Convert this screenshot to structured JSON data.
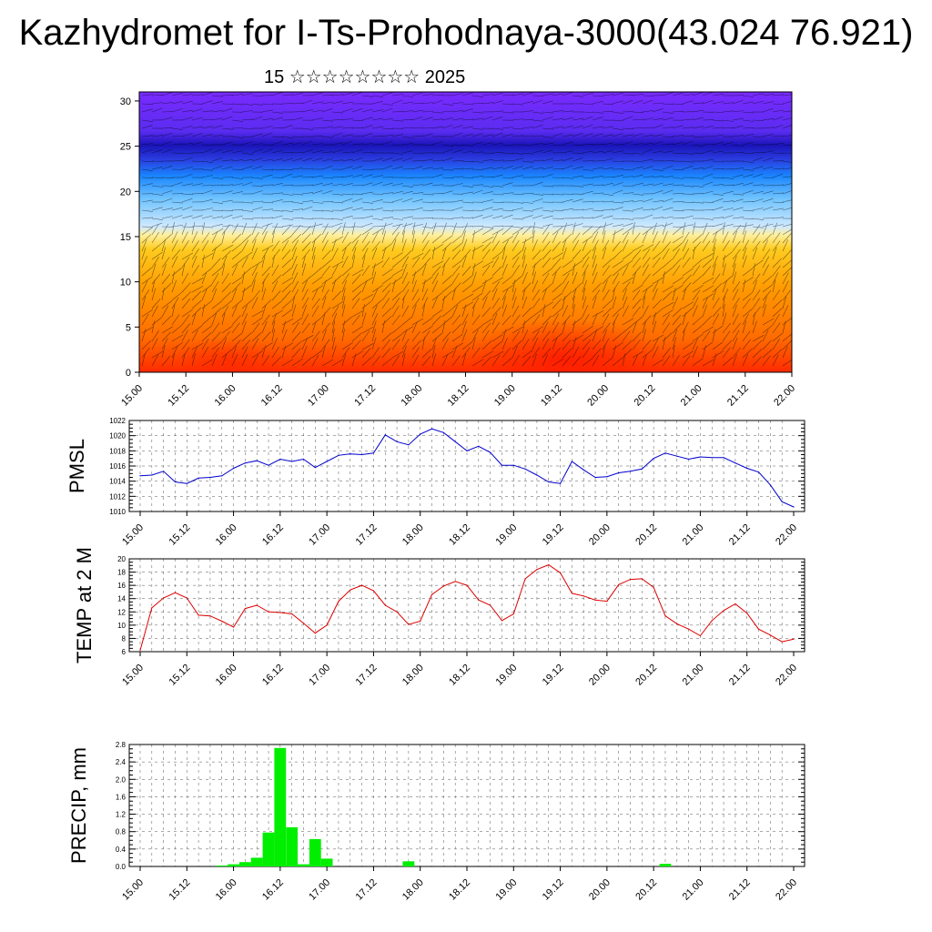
{
  "header": {
    "title": "Kazhydromet for I-Ts-Prohodnaya-3000(43.024 76.921)",
    "subtitle": "15 ☆☆☆☆☆☆☆☆ 2025"
  },
  "chart_data": [
    {
      "type": "heatmap",
      "id": "cross_section",
      "x_ticks": [
        "15.00",
        "15.12",
        "16.00",
        "16.12",
        "17.00",
        "17.12",
        "18.00",
        "18.12",
        "19.00",
        "19.12",
        "20.00",
        "20.12",
        "21.00",
        "21.12",
        "22.00"
      ],
      "y_ticks": [
        0,
        5,
        10,
        15,
        20,
        25,
        30
      ],
      "ylim": [
        0,
        31
      ],
      "colors": {
        "low": "#ff2a00",
        "mid": "#ffb300",
        "transition": "#fff3b0",
        "cold": "#7fc8ff",
        "deep_blue": "#1a1ab0",
        "top": "#7a2bff"
      }
    },
    {
      "type": "line",
      "id": "pmsl",
      "ylabel": "PMSL",
      "color": "#0000cc",
      "ylim": [
        1010,
        1022
      ],
      "y_ticks": [
        1010,
        1012,
        1014,
        1016,
        1018,
        1020,
        1022
      ],
      "x_ticks": [
        "15.00",
        "15.12",
        "16.00",
        "16.12",
        "17.00",
        "17.12",
        "18.00",
        "18.12",
        "19.00",
        "19.12",
        "20.00",
        "20.12",
        "21.00",
        "21.12",
        "22.00"
      ],
      "x_hours_step": 3,
      "values": [
        1014.7,
        1014.8,
        1015.3,
        1013.9,
        1013.7,
        1014.4,
        1014.5,
        1014.7,
        1015.7,
        1016.4,
        1016.7,
        1016.1,
        1016.9,
        1016.6,
        1016.9,
        1015.8,
        1016.6,
        1017.4,
        1017.6,
        1017.5,
        1017.7,
        1020.1,
        1019.2,
        1018.8,
        1020.2,
        1020.9,
        1020.4,
        1019.2,
        1018.0,
        1018.6,
        1017.8,
        1016.1,
        1016.1,
        1015.6,
        1014.8,
        1013.9,
        1013.7,
        1016.6,
        1015.5,
        1014.5,
        1014.6,
        1015.1,
        1015.3,
        1015.6,
        1017.0,
        1017.7,
        1017.3,
        1016.9,
        1017.2,
        1017.1,
        1017.1,
        1016.4,
        1015.7,
        1015.2,
        1013.5,
        1011.3,
        1010.6
      ]
    },
    {
      "type": "line",
      "id": "temp2m",
      "ylabel": "TEMP at 2 M",
      "color": "#dd0000",
      "ylim": [
        6,
        20
      ],
      "y_ticks": [
        6,
        8,
        10,
        12,
        14,
        16,
        18,
        20
      ],
      "x_ticks": [
        "15.00",
        "15.12",
        "16.00",
        "16.12",
        "17.00",
        "17.12",
        "18.00",
        "18.12",
        "19.00",
        "19.12",
        "20.00",
        "20.12",
        "21.00",
        "21.12",
        "22.00"
      ],
      "x_hours_step": 3,
      "values": [
        6.2,
        12.6,
        14.1,
        14.9,
        14.1,
        11.5,
        11.4,
        10.6,
        9.7,
        12.5,
        13.0,
        12.0,
        11.9,
        11.7,
        10.3,
        8.8,
        10.0,
        13.6,
        15.3,
        16.0,
        15.2,
        13.0,
        12.0,
        10.1,
        10.6,
        14.6,
        15.9,
        16.6,
        16.0,
        13.8,
        13.0,
        10.7,
        11.7,
        17.0,
        18.4,
        19.1,
        17.9,
        14.8,
        14.4,
        13.8,
        13.6,
        16.1,
        16.9,
        17.0,
        15.7,
        11.4,
        10.2,
        9.4,
        8.4,
        10.7,
        12.2,
        13.2,
        11.8,
        9.4,
        8.5,
        7.5,
        7.9
      ]
    },
    {
      "type": "bar",
      "id": "precip",
      "ylabel": "PRECIP, mm",
      "color": "#00ee00",
      "ylim": [
        0,
        2.8
      ],
      "y_ticks": [
        0.0,
        0.4,
        0.8,
        1.2,
        1.6,
        2.0,
        2.4,
        2.8
      ],
      "x_ticks": [
        "15.00",
        "15.12",
        "16.00",
        "16.12",
        "17.00",
        "17.12",
        "18.00",
        "18.12",
        "19.00",
        "19.12",
        "20.00",
        "20.12",
        "21.00",
        "21.12",
        "22.00"
      ],
      "x_hours_step": 3,
      "values": [
        0,
        0,
        0,
        0,
        0,
        0,
        0,
        0.02,
        0.05,
        0.1,
        0.2,
        0.78,
        2.72,
        0.9,
        0.05,
        0.63,
        0.18,
        0,
        0,
        0,
        0,
        0,
        0,
        0.12,
        0,
        0,
        0,
        0,
        0,
        0,
        0,
        0,
        0,
        0,
        0,
        0,
        0,
        0,
        0,
        0,
        0,
        0,
        0,
        0,
        0,
        0.06,
        0,
        0,
        0,
        0,
        0,
        0,
        0,
        0,
        0,
        0,
        0
      ]
    }
  ]
}
